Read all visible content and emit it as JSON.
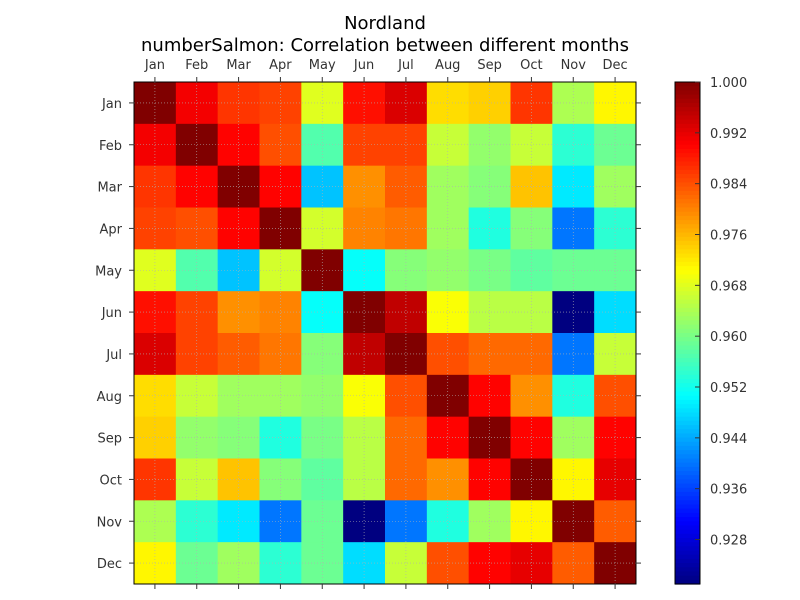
{
  "chart_data": {
    "type": "heatmap",
    "title": "Nordland",
    "subtitle": "numberSalmon: Correlation between different months",
    "x_categories": [
      "Jan",
      "Feb",
      "Mar",
      "Apr",
      "May",
      "Jun",
      "Jul",
      "Aug",
      "Sep",
      "Oct",
      "Nov",
      "Dec"
    ],
    "y_categories": [
      "Jan",
      "Feb",
      "Mar",
      "Apr",
      "May",
      "Jun",
      "Jul",
      "Aug",
      "Sep",
      "Oct",
      "Nov",
      "Dec"
    ],
    "colorbar": {
      "min": 0.921,
      "max": 1.0,
      "ticks": [
        "1.000",
        "0.992",
        "0.984",
        "0.976",
        "0.968",
        "0.960",
        "0.952",
        "0.944",
        "0.936",
        "0.928"
      ],
      "colormap": "jet"
    },
    "values": [
      [
        1.0,
        0.991,
        0.986,
        0.985,
        0.968,
        0.989,
        0.993,
        0.973,
        0.974,
        0.986,
        0.964,
        0.971
      ],
      [
        0.991,
        1.0,
        0.99,
        0.984,
        0.957,
        0.985,
        0.985,
        0.966,
        0.962,
        0.966,
        0.954,
        0.959
      ],
      [
        0.986,
        0.99,
        1.0,
        0.99,
        0.946,
        0.979,
        0.983,
        0.963,
        0.961,
        0.975,
        0.949,
        0.963
      ],
      [
        0.985,
        0.984,
        0.99,
        1.0,
        0.967,
        0.98,
        0.981,
        0.963,
        0.953,
        0.961,
        0.94,
        0.954
      ],
      [
        0.968,
        0.957,
        0.946,
        0.967,
        1.0,
        0.951,
        0.961,
        0.962,
        0.96,
        0.958,
        0.959,
        0.959
      ],
      [
        0.989,
        0.985,
        0.979,
        0.98,
        0.951,
        1.0,
        0.995,
        0.97,
        0.965,
        0.965,
        0.921,
        0.948
      ],
      [
        0.993,
        0.985,
        0.983,
        0.981,
        0.961,
        0.995,
        1.0,
        0.984,
        0.982,
        0.982,
        0.94,
        0.966
      ],
      [
        0.973,
        0.966,
        0.963,
        0.963,
        0.962,
        0.97,
        0.984,
        1.0,
        0.99,
        0.979,
        0.953,
        0.984
      ],
      [
        0.974,
        0.962,
        0.961,
        0.953,
        0.96,
        0.965,
        0.982,
        0.99,
        1.0,
        0.99,
        0.963,
        0.99
      ],
      [
        0.986,
        0.966,
        0.975,
        0.961,
        0.958,
        0.965,
        0.982,
        0.979,
        0.99,
        1.0,
        0.971,
        0.992
      ],
      [
        0.964,
        0.954,
        0.949,
        0.94,
        0.959,
        0.921,
        0.94,
        0.953,
        0.963,
        0.971,
        1.0,
        0.983
      ],
      [
        0.971,
        0.959,
        0.963,
        0.954,
        0.959,
        0.948,
        0.966,
        0.984,
        0.99,
        0.992,
        0.983,
        1.0
      ]
    ]
  }
}
